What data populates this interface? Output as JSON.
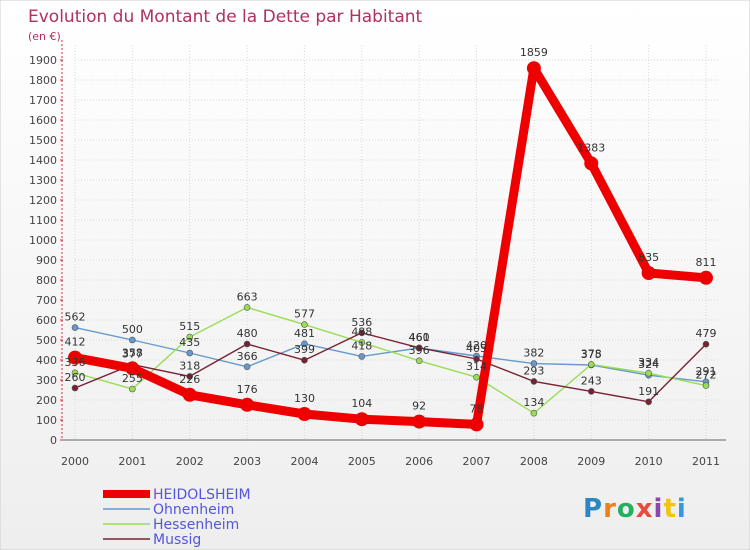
{
  "chart_data": {
    "type": "line",
    "title": "Evolution du Montant de la Dette par Habitant",
    "subtitle": "(en €)",
    "x": [
      "2000",
      "2001",
      "2002",
      "2003",
      "2004",
      "2005",
      "2006",
      "2007",
      "2008",
      "2009",
      "2010",
      "2011"
    ],
    "yticks": [
      0,
      100,
      200,
      300,
      400,
      500,
      600,
      700,
      800,
      900,
      1000,
      1100,
      1200,
      1300,
      1400,
      1500,
      1600,
      1700,
      1800,
      1900
    ],
    "ylim": [
      0,
      1950
    ],
    "grid": true,
    "legend_position": "bottom-left",
    "series": [
      {
        "name": "HEIDOLSHEIM",
        "color": "#ee0000",
        "values": [
          412,
          358,
          226,
          176,
          130,
          104,
          92,
          78,
          1859,
          1383,
          835,
          811
        ]
      },
      {
        "name": "Ohnenheim",
        "color": "#6699cc",
        "values": [
          562,
          500,
          435,
          366,
          481,
          418,
          460,
          420,
          382,
          375,
          324,
          291
        ]
      },
      {
        "name": "Hessenheim",
        "color": "#99dd55",
        "values": [
          336,
          255,
          515,
          663,
          577,
          488,
          396,
          314,
          134,
          378,
          334,
          272
        ]
      },
      {
        "name": "Mussig",
        "color": "#772233",
        "values": [
          260,
          377,
          318,
          480,
          399,
          536,
          461,
          405,
          293,
          243,
          191,
          479
        ]
      }
    ]
  },
  "logo": {
    "text": "Proxiti"
  }
}
